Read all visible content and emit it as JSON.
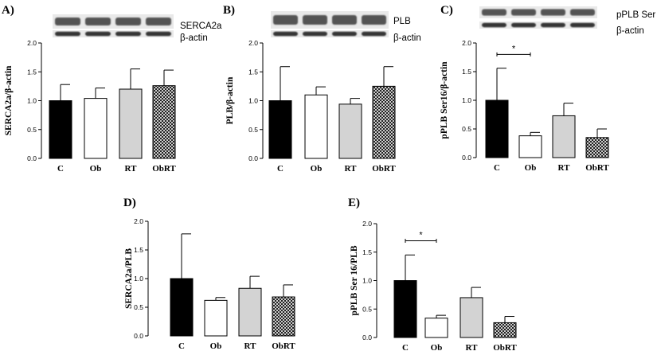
{
  "colors": {
    "C": "#000000",
    "Ob": "#ffffff",
    "RT": "#d3d3d3",
    "ObRT": "crosshatch"
  },
  "chart_data": [
    {
      "id": "A",
      "panel_label": "A)",
      "type": "bar",
      "ylabel": "SERCA2a/β-actin",
      "categories": [
        "C",
        "Ob",
        "RT",
        "ObRT"
      ],
      "values": [
        1.0,
        1.04,
        1.2,
        1.26
      ],
      "errors": [
        0.28,
        0.18,
        0.35,
        0.27
      ],
      "ylim": [
        0,
        2.0
      ],
      "ticks": [
        "0.0",
        "0.5",
        "1.0",
        "1.5",
        "2.0"
      ],
      "blots": [
        "SERCA2a",
        "β-actin"
      ],
      "significance": null
    },
    {
      "id": "B",
      "panel_label": "B)",
      "type": "bar",
      "ylabel": "PLB/β-actin",
      "categories": [
        "C",
        "Ob",
        "RT",
        "ObRT"
      ],
      "values": [
        1.0,
        1.1,
        0.94,
        1.25
      ],
      "errors": [
        0.59,
        0.14,
        0.1,
        0.34
      ],
      "ylim": [
        0,
        2.0
      ],
      "ticks": [
        "0.0",
        "0.5",
        "1.0",
        "1.5",
        "2.0"
      ],
      "blots": [
        "PLB",
        "β-actin"
      ],
      "significance": null
    },
    {
      "id": "C",
      "panel_label": "C)",
      "type": "bar",
      "ylabel": "pPLB Ser16/β-actin",
      "categories": [
        "C",
        "Ob",
        "RT",
        "ObRT"
      ],
      "values": [
        1.0,
        0.38,
        0.73,
        0.35
      ],
      "errors": [
        0.56,
        0.06,
        0.22,
        0.15
      ],
      "ylim": [
        0,
        2.0
      ],
      "ticks": [
        "0.0",
        "0.5",
        "1.0",
        "1.5",
        "2.0"
      ],
      "blots": [
        "pPLB Ser",
        "β-actin"
      ],
      "significance": {
        "from": "C",
        "to": "Ob",
        "level": 1.8,
        "label": "*"
      }
    },
    {
      "id": "D",
      "panel_label": "D)",
      "type": "bar",
      "ylabel": "SERCA2a/PLB",
      "categories": [
        "C",
        "Ob",
        "RT",
        "ObRT"
      ],
      "values": [
        1.0,
        0.62,
        0.83,
        0.68
      ],
      "errors": [
        0.78,
        0.05,
        0.21,
        0.21
      ],
      "ylim": [
        0,
        2.0
      ],
      "ticks": [
        "0.0",
        "0.5",
        "1.0",
        "1.5",
        "2.0"
      ],
      "blots": [],
      "significance": null
    },
    {
      "id": "E",
      "panel_label": "E)",
      "type": "bar",
      "ylabel": "pPLB Ser 16/PLB",
      "categories": [
        "C",
        "Ob",
        "RT",
        "ObRT"
      ],
      "values": [
        1.0,
        0.34,
        0.7,
        0.26
      ],
      "errors": [
        0.45,
        0.05,
        0.18,
        0.11
      ],
      "ylim": [
        0,
        2.0
      ],
      "ticks": [
        "0.0",
        "0.5",
        "1.0",
        "1.5",
        "2.0"
      ],
      "blots": [],
      "significance": {
        "from": "C",
        "to": "Ob",
        "level": 1.7,
        "label": "*"
      }
    }
  ]
}
